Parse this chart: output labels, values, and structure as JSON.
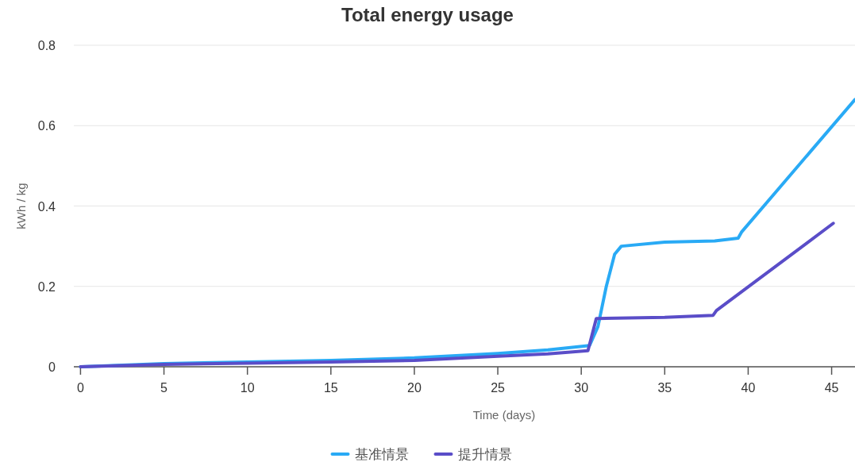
{
  "chart_data": {
    "type": "line",
    "title": "Total energy usage",
    "xlabel": "Time (days)",
    "ylabel": "kWh / kg",
    "xlim": [
      -0.4,
      46.4
    ],
    "ylim": [
      0,
      0.8
    ],
    "xticks": [
      0,
      5,
      10,
      15,
      20,
      25,
      30,
      35,
      40,
      45
    ],
    "yticks": [
      0,
      0.2,
      0.4,
      0.6,
      0.8
    ],
    "grid": "y",
    "legend": "bottom",
    "marker": "none",
    "line_style": "solid",
    "series": [
      {
        "name": "基准情景",
        "color": "#29aaf5",
        "x": [
          0,
          5,
          10,
          15,
          20,
          25,
          28,
          30.5,
          31.0,
          31.5,
          32.0,
          32.4,
          35,
          38,
          39.4,
          39.6,
          46.4
        ],
        "values": [
          0,
          0.008,
          0.012,
          0.016,
          0.022,
          0.033,
          0.042,
          0.053,
          0.1,
          0.2,
          0.28,
          0.3,
          0.31,
          0.313,
          0.32,
          0.335,
          0.665
        ]
      },
      {
        "name": "提升情景",
        "color": "#5a4dc8",
        "x": [
          0,
          5,
          10,
          15,
          20,
          25,
          28,
          30.4,
          30.9,
          35,
          37.9,
          38.1,
          45.1
        ],
        "values": [
          0,
          0.006,
          0.009,
          0.012,
          0.016,
          0.026,
          0.032,
          0.04,
          0.12,
          0.123,
          0.128,
          0.14,
          0.357
        ]
      }
    ]
  }
}
